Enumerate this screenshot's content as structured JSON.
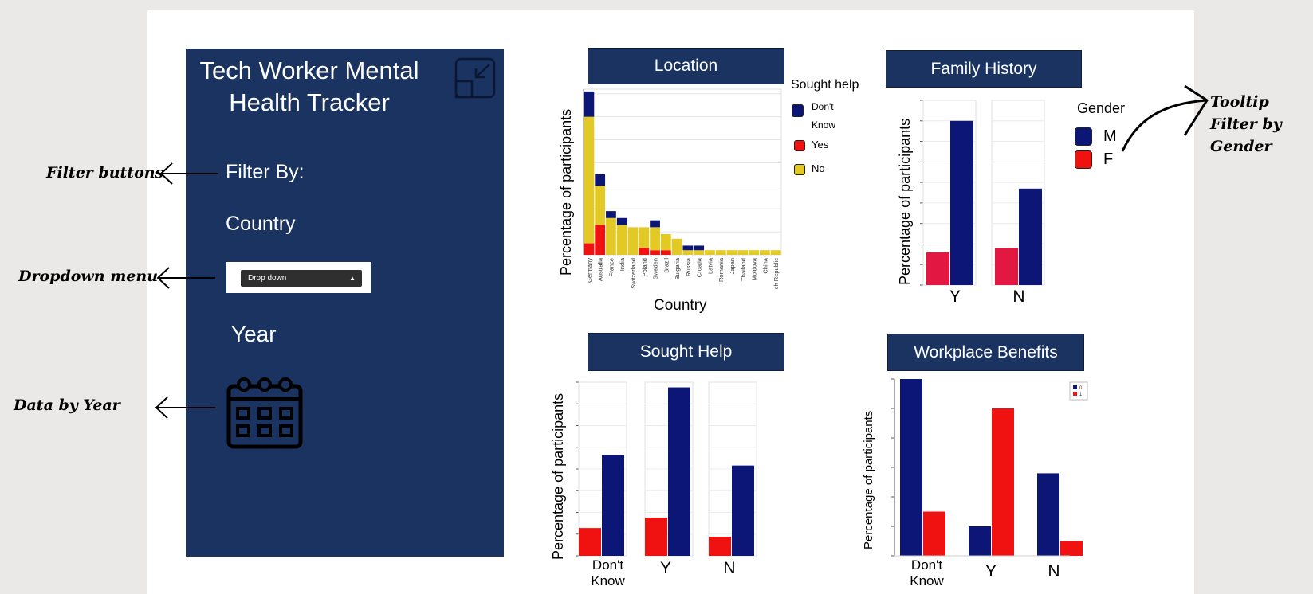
{
  "sidebar": {
    "title_line1": "Tech Worker Mental",
    "title_line2": "Health Tracker",
    "filter_by": "Filter By:",
    "country_label": "Country",
    "dropdown_value": "Drop down",
    "year_label": "Year",
    "icons": [
      "collapse-icon",
      "calendar-icon"
    ]
  },
  "annotations": {
    "filter_buttons": "Filter buttons",
    "dropdown_menu": "Dropdown menu",
    "data_by_year": "Data by Year",
    "tooltip_line1": "Tooltip",
    "tooltip_line2": "Filter by",
    "tooltip_line3": "Gender"
  },
  "colors": {
    "navy": "#1b3361",
    "dark_blue": "#0c1677",
    "red": "#f01111",
    "crimson": "#e31842",
    "yellow": "#e3c925"
  },
  "chart_data": [
    {
      "id": "location",
      "type": "bar",
      "stacked": true,
      "title": "Location",
      "xlabel": "Country",
      "ylabel": "Percentage of participants",
      "categories": [
        "Germany",
        "Australia",
        "France",
        "India",
        "Switzerland",
        "Poland",
        "Sweden",
        "Brazil",
        "Bulgaria",
        "Russia",
        "Croatia",
        "Latvia",
        "Romania",
        "Japan",
        "Thailand",
        "Moldova",
        "China",
        "ch Republic"
      ],
      "series": [
        {
          "name": "Yes",
          "color": "#f01111",
          "values": [
            5,
            13,
            0,
            0,
            0,
            3,
            2,
            2,
            0,
            0,
            0,
            0,
            0,
            0,
            0,
            0,
            0,
            0
          ]
        },
        {
          "name": "No",
          "color": "#e3c925",
          "values": [
            55,
            17,
            16,
            13,
            12,
            9,
            10,
            7,
            7,
            2,
            2,
            2,
            2,
            2,
            2,
            2,
            2,
            2
          ]
        },
        {
          "name": "Don't Know",
          "color": "#0c1677",
          "values": [
            11,
            5,
            3,
            3,
            0,
            0,
            3,
            0,
            0,
            2,
            2,
            0,
            0,
            0,
            0,
            0,
            0,
            0
          ]
        }
      ],
      "ylim": [
        0,
        72
      ],
      "legend_title": "Sought help",
      "legend": [
        {
          "label_line1": "Don't",
          "label_line2": "Know",
          "color": "#0c1677"
        },
        {
          "label": "Yes",
          "color": "#f01111"
        },
        {
          "label": "No",
          "color": "#e3c925"
        }
      ]
    },
    {
      "id": "family_history",
      "type": "bar",
      "title": "Family History",
      "ylabel": "Percentage of participants",
      "categories": [
        "Y",
        "N"
      ],
      "series": [
        {
          "name": "F",
          "color": "#e31842",
          "values": [
            16,
            18
          ]
        },
        {
          "name": "M",
          "color": "#0c1677",
          "values": [
            80,
            47
          ]
        }
      ],
      "ylim": [
        0,
        90
      ],
      "legend_title": "Gender",
      "legend": [
        {
          "label": "M",
          "color": "#0c1677"
        },
        {
          "label": "F",
          "color": "#f01111"
        }
      ]
    },
    {
      "id": "sought_help",
      "type": "bar",
      "title": "Sought Help",
      "ylabel": "Percentage of participants",
      "categories": [
        "Don't Know",
        "Y",
        "N"
      ],
      "category_lines": [
        [
          "Don't",
          "Know"
        ],
        [
          "Y"
        ],
        [
          "N"
        ]
      ],
      "series": [
        {
          "name": "F",
          "color": "#f01111",
          "values": [
            16,
            22,
            11
          ]
        },
        {
          "name": "M",
          "color": "#0c1677",
          "values": [
            58,
            97,
            52
          ]
        }
      ],
      "ylim": [
        0,
        100
      ]
    },
    {
      "id": "workplace_benefits",
      "type": "bar",
      "title": "Workplace Benefits",
      "ylabel": "Percentage of participants",
      "categories": [
        "Don't Know",
        "Y",
        "N"
      ],
      "category_lines": [
        [
          "Don't",
          "Know"
        ],
        [
          "Y"
        ],
        [
          "N"
        ]
      ],
      "series": [
        {
          "name": "0",
          "color": "#0c1677",
          "values": [
            60,
            10,
            28
          ]
        },
        {
          "name": "1",
          "color": "#f01111",
          "values": [
            15,
            50,
            5
          ]
        }
      ],
      "ylim": [
        0,
        60
      ],
      "legend": [
        {
          "label": "0",
          "color": "#0c1677"
        },
        {
          "label": "1",
          "color": "#f01111"
        }
      ]
    }
  ]
}
